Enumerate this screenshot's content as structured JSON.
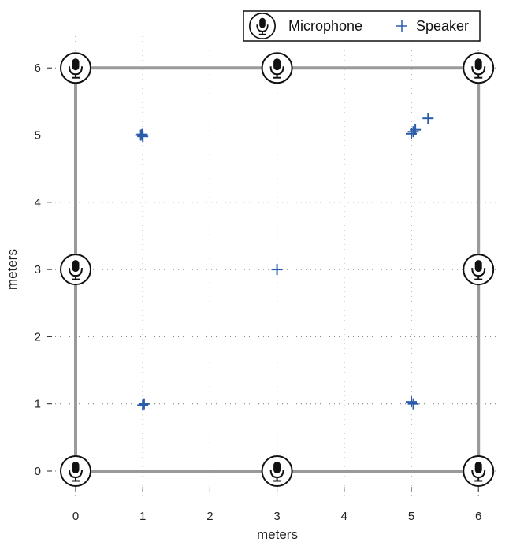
{
  "chart_data": {
    "type": "scatter",
    "xlabel": "meters",
    "ylabel": "meters",
    "xlim": [
      -0.3,
      6.3
    ],
    "ylim": [
      -0.3,
      6.3
    ],
    "xticks": [
      0,
      1,
      2,
      3,
      4,
      5,
      6
    ],
    "yticks": [
      0,
      1,
      2,
      3,
      4,
      5,
      6
    ],
    "grid": true,
    "room_boundary": [
      [
        0,
        0
      ],
      [
        6,
        0
      ],
      [
        6,
        6
      ],
      [
        0,
        6
      ]
    ],
    "legend": {
      "position": "top-right",
      "entries": [
        "Microphone",
        "Speaker"
      ]
    },
    "series": [
      {
        "name": "Microphone",
        "marker": "microphone-icon",
        "points": [
          [
            0,
            0
          ],
          [
            3,
            0
          ],
          [
            6,
            0
          ],
          [
            0,
            3
          ],
          [
            6,
            3
          ],
          [
            0,
            6
          ],
          [
            3,
            6
          ],
          [
            6,
            6
          ]
        ]
      },
      {
        "name": "Speaker",
        "marker": "plus",
        "color": "#2a5caa",
        "points": [
          [
            0.97,
            5.0
          ],
          [
            1.0,
            4.98
          ],
          [
            0.99,
            5.01
          ],
          [
            5.03,
            5.05
          ],
          [
            5.06,
            5.08
          ],
          [
            5.0,
            5.02
          ],
          [
            5.25,
            5.25
          ],
          [
            3.0,
            3.0
          ],
          [
            1.0,
            0.98
          ],
          [
            1.02,
            1.0
          ],
          [
            5.0,
            1.03
          ],
          [
            5.03,
            1.0
          ]
        ]
      }
    ]
  }
}
